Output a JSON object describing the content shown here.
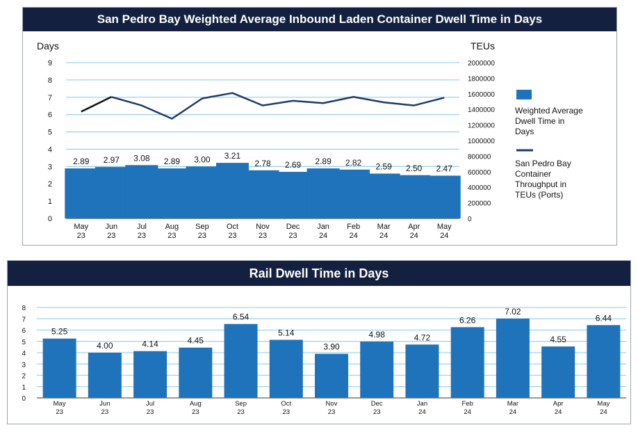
{
  "chart_data": [
    {
      "type": "bar+line",
      "title": "San Pedro Bay Weighted Average Inbound Laden Container Dwell Time in Days",
      "ylabel": "Days",
      "y2label": "TEUs",
      "ylim": [
        0,
        9
      ],
      "y2lim": [
        0,
        2000000
      ],
      "categories": [
        [
          "May",
          "23"
        ],
        [
          "Jun",
          "23"
        ],
        [
          "Jul",
          "23"
        ],
        [
          "Aug",
          "23"
        ],
        [
          "Sep",
          "23"
        ],
        [
          "Oct",
          "23"
        ],
        [
          "Nov",
          "23"
        ],
        [
          "Dec",
          "23"
        ],
        [
          "Jan",
          "24"
        ],
        [
          "Feb",
          "24"
        ],
        [
          "Mar",
          "24"
        ],
        [
          "Apr",
          "24"
        ],
        [
          "May",
          "24"
        ]
      ],
      "yticks": [
        "0",
        "1",
        "2",
        "3",
        "4",
        "5",
        "6",
        "7",
        "8",
        "9"
      ],
      "y2ticks": [
        "0",
        "200000",
        "400000",
        "600000",
        "800000",
        "1000000",
        "1200000",
        "1400000",
        "1600000",
        "1800000",
        "2000000"
      ],
      "series": [
        {
          "name": "Weighted Average Dwell Time in Days",
          "kind": "bar",
          "values": [
            2.89,
            2.97,
            3.08,
            2.89,
            3.0,
            3.21,
            2.78,
            2.69,
            2.89,
            2.82,
            2.59,
            2.5,
            2.47
          ],
          "labels": [
            "2.89",
            "2.97",
            "3.08",
            "2.89",
            "3.00",
            "3.21",
            "2.78",
            "2.69",
            "2.89",
            "2.82",
            "2.59",
            "2.50",
            "2.47"
          ]
        },
        {
          "name": "San Pedro Bay Container Throughput in TEUs (Ports)",
          "kind": "line",
          "axis": "secondary",
          "values": [
            1370000,
            1560000,
            1450000,
            1280000,
            1540000,
            1610000,
            1450000,
            1510000,
            1480000,
            1560000,
            1490000,
            1450000,
            1550000
          ]
        }
      ],
      "grid": true,
      "legend": "right"
    },
    {
      "type": "bar",
      "title": "Rail Dwell Time in Days",
      "ylim": [
        0,
        8
      ],
      "categories": [
        [
          "May",
          "23"
        ],
        [
          "Jun",
          "23"
        ],
        [
          "Jul",
          "23"
        ],
        [
          "Aug",
          "23"
        ],
        [
          "Sep",
          "23"
        ],
        [
          "Oct",
          "23"
        ],
        [
          "Nov",
          "23"
        ],
        [
          "Dec",
          "23"
        ],
        [
          "Jan",
          "24"
        ],
        [
          "Feb",
          "24"
        ],
        [
          "Mar",
          "24"
        ],
        [
          "Apr",
          "24"
        ],
        [
          "May",
          "24"
        ]
      ],
      "yticks": [
        "0",
        "1",
        "2",
        "3",
        "4",
        "5",
        "6",
        "7",
        "8"
      ],
      "values": [
        5.25,
        4.0,
        4.14,
        4.45,
        6.54,
        5.14,
        3.9,
        4.98,
        4.72,
        6.26,
        7.02,
        4.55,
        6.44
      ],
      "labels": [
        "5.25",
        "4.00",
        "4.14",
        "4.45",
        "6.54",
        "5.14",
        "3.90",
        "4.98",
        "4.72",
        "6.26",
        "7.02",
        "4.55",
        "6.44"
      ],
      "grid": true
    }
  ],
  "colors": {
    "bar": "#1f73ba",
    "line": "#1f3a68",
    "line_first_segment": "#111111",
    "grid": "#9fd3ea",
    "header": "#13203f"
  }
}
